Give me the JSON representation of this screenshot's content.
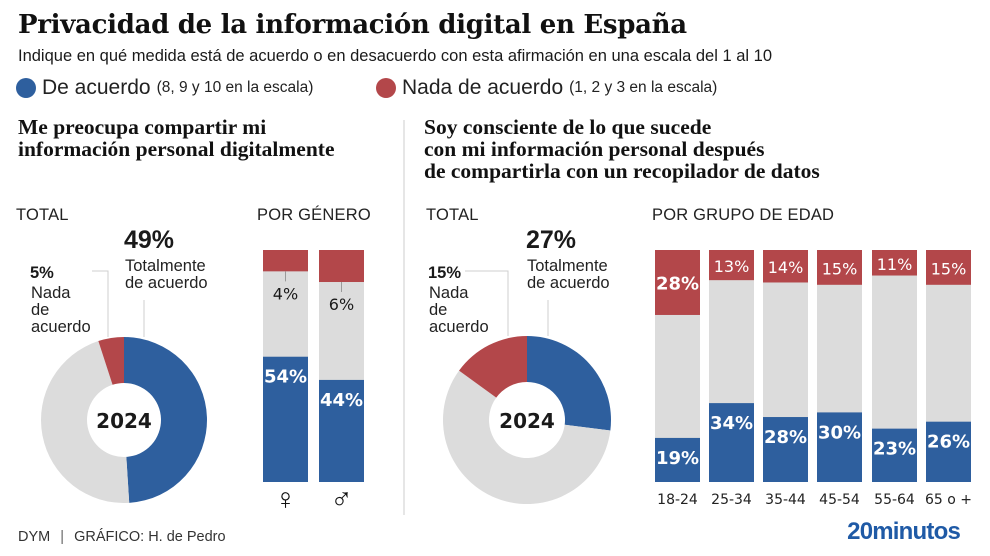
{
  "header": {
    "title": "Privacidad de la información digital en España",
    "subtitle": "Indique en qué medida está de acuerdo o en desacuerdo con esta afirmación en una escala del 1 al 10"
  },
  "legend": [
    {
      "label": "De acuerdo",
      "sub": "(8, 9 y 10 en la escala)",
      "color": "#2e5f9e"
    },
    {
      "label": "Nada de acuerdo",
      "sub": "(1, 2 y 3 en la escala)",
      "color": "#b3474a"
    }
  ],
  "colors": {
    "agree": "#2e5f9e",
    "disagree": "#b3474a",
    "rest": "#dcdcdc",
    "brand": "#1f5aa6"
  },
  "sections": [
    {
      "title_lines": [
        "Me preocupa compartir mi",
        "información personal digitalmente"
      ],
      "total_head": "TOTAL",
      "breakdown_head": "POR GÉNERO"
    },
    {
      "title_lines": [
        "Soy consciente de lo que sucede",
        "con mi información personal después",
        "de compartirla con un recopilador de datos"
      ],
      "total_head": "TOTAL",
      "breakdown_head": "POR GRUPO DE EDAD"
    }
  ],
  "chart_data": [
    {
      "type": "pie",
      "title": "Me preocupa compartir mi información personal digitalmente — TOTAL",
      "center_label": "2024",
      "slices": [
        {
          "name": "Totalmente de acuerdo",
          "value": 49,
          "label": "49%"
        },
        {
          "name": "Resto",
          "value": 46,
          "label": ""
        },
        {
          "name": "Nada de acuerdo",
          "value": 5,
          "label": "5%"
        }
      ],
      "annotations": {
        "agree": {
          "pct": "49%",
          "lines": [
            "Totalmente",
            "de acuerdo"
          ]
        },
        "disagree": {
          "pct": "5%",
          "lines": [
            "Nada",
            "de",
            "acuerdo"
          ]
        }
      }
    },
    {
      "type": "bar",
      "stacked": true,
      "title": "POR GÉNERO",
      "categories": [
        "Mujer",
        "Hombre"
      ],
      "category_icons": [
        "♀",
        "♂"
      ],
      "series": [
        {
          "name": "De acuerdo",
          "values": [
            54,
            44
          ]
        },
        {
          "name": "Nada de acuerdo",
          "values": [
            4,
            6
          ]
        }
      ],
      "ylim": [
        0,
        100
      ]
    },
    {
      "type": "pie",
      "title": "Soy consciente de lo que sucede con mi información personal después de compartirla con un recopilador de datos — TOTAL",
      "center_label": "2024",
      "slices": [
        {
          "name": "Totalmente de acuerdo",
          "value": 27,
          "label": "27%"
        },
        {
          "name": "Resto",
          "value": 58,
          "label": ""
        },
        {
          "name": "Nada de acuerdo",
          "value": 15,
          "label": "15%"
        }
      ],
      "annotations": {
        "agree": {
          "pct": "27%",
          "lines": [
            "Totalmente",
            "de acuerdo"
          ]
        },
        "disagree": {
          "pct": "15%",
          "lines": [
            "Nada",
            "de",
            "acuerdo"
          ]
        }
      }
    },
    {
      "type": "bar",
      "stacked": true,
      "title": "POR GRUPO DE EDAD",
      "categories": [
        "18-24",
        "25-34",
        "35-44",
        "45-54",
        "55-64",
        "65 o +"
      ],
      "series": [
        {
          "name": "De acuerdo",
          "values": [
            19,
            34,
            28,
            30,
            23,
            26
          ]
        },
        {
          "name": "Nada de acuerdo",
          "values": [
            28,
            13,
            14,
            15,
            11,
            15
          ]
        }
      ],
      "ylim": [
        0,
        100
      ]
    }
  ],
  "footer": {
    "source": "DYM",
    "separator": "|",
    "credit": "GRÁFICO: H. de Pedro",
    "brand": "20minutos"
  }
}
